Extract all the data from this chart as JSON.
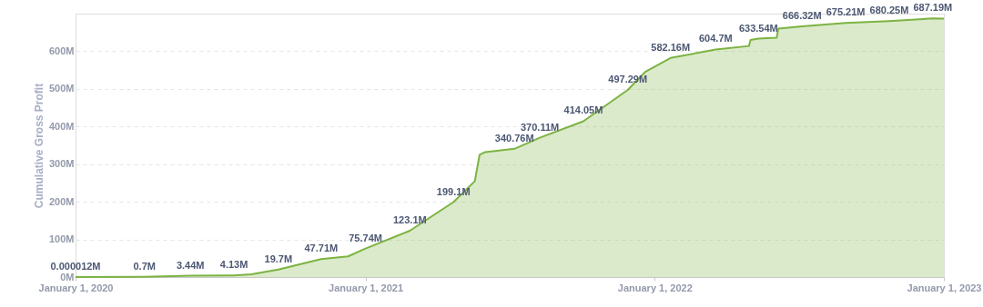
{
  "chart_data": {
    "type": "area",
    "ylabel": "Cumulative Gross Profit",
    "x": [
      "2020-01-01",
      "2020-03-28",
      "2020-05-25",
      "2020-07-19",
      "2020-08-10",
      "2020-09-13",
      "2020-11-06",
      "2020-12-10",
      "2021-01-01",
      "2021-02-26",
      "2021-04-22",
      "2021-05-19",
      "2021-05-25",
      "2021-06-01",
      "2021-07-08",
      "2021-08-09",
      "2021-10-03",
      "2021-11-28",
      "2021-12-20",
      "2022-01-21",
      "2022-03-19",
      "2022-04-30",
      "2022-05-02",
      "2022-05-12",
      "2022-06-04",
      "2022-06-06",
      "2022-07-06",
      "2022-08-30",
      "2022-10-24",
      "2022-12-18",
      "2023-01-01"
    ],
    "series": [
      {
        "color": "#7cb342",
        "values": [
          1.2e-05,
          0.7,
          3.44,
          4.13,
          7,
          19.7,
          47.71,
          55,
          75.74,
          123.1,
          199.1,
          255,
          325,
          332,
          340.76,
          370.11,
          414.05,
          497.29,
          545,
          582.16,
          604.7,
          614,
          630,
          633.54,
          636,
          660,
          666.32,
          675.21,
          680.25,
          687.19,
          687
        ],
        "value_labels": [
          "0.000012M",
          "0.7M",
          "3.44M",
          "4.13M",
          null,
          "19.7M",
          "47.71M",
          null,
          "75.74M",
          "123.1M",
          "199.1M",
          null,
          null,
          null,
          "340.76M",
          "370.11M",
          "414.05M",
          "497.29M",
          null,
          "582.16M",
          "604.7M",
          null,
          null,
          "633.54M",
          null,
          null,
          "666.32M",
          "675.21M",
          "680.25M",
          "687.19M",
          null
        ]
      }
    ],
    "xlim": [
      "2020-01-01",
      "2023-01-01"
    ],
    "xticks": [
      {
        "value": "2020-01-01",
        "label": "January 1, 2020"
      },
      {
        "value": "2021-01-01",
        "label": "January 1, 2021"
      },
      {
        "value": "2022-01-01",
        "label": "January 1, 2022"
      },
      {
        "value": "2023-01-01",
        "label": "January 1, 2023"
      }
    ],
    "ylim": [
      0,
      700
    ],
    "yticks": [
      {
        "value": 0,
        "label": "0M"
      },
      {
        "value": 100,
        "label": "100M"
      },
      {
        "value": 200,
        "label": "200M"
      },
      {
        "value": 300,
        "label": "300M"
      },
      {
        "value": 400,
        "label": "400M"
      },
      {
        "value": 500,
        "label": "500M"
      },
      {
        "value": 600,
        "label": "600M"
      }
    ],
    "grid": "y",
    "marker": "none",
    "line_style": "solid"
  }
}
